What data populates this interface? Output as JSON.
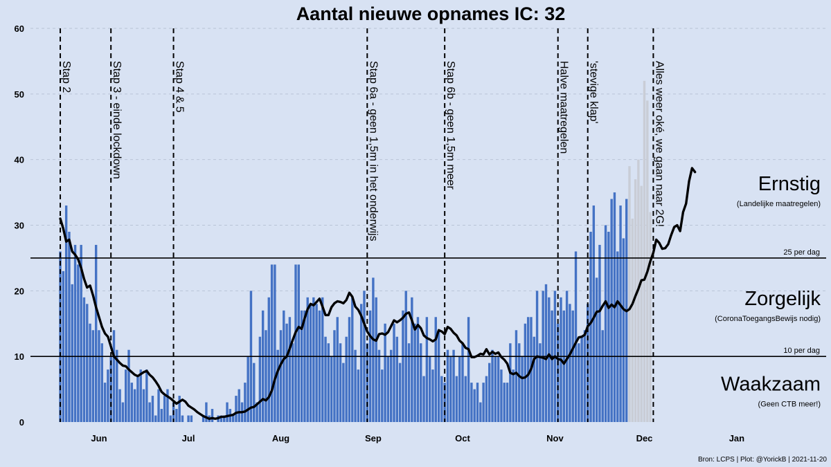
{
  "chart_data": {
    "type": "bar",
    "title": "Aantal nieuwe opnames IC:  32",
    "ylim": [
      0,
      60
    ],
    "yticks": [
      0,
      10,
      20,
      30,
      40,
      50,
      60
    ],
    "grid": true,
    "x_start_date": "2021-05-19",
    "xlim": [
      "2021-05-09",
      "2022-01-31"
    ],
    "month_ticks": [
      {
        "label": "Jun",
        "date": "2021-06-01"
      },
      {
        "label": "Jul",
        "date": "2021-07-01"
      },
      {
        "label": "Aug",
        "date": "2021-08-01"
      },
      {
        "label": "Sep",
        "date": "2021-09-01"
      },
      {
        "label": "Oct",
        "date": "2021-10-01"
      },
      {
        "label": "Nov",
        "date": "2021-11-01"
      },
      {
        "label": "Dec",
        "date": "2021-12-01"
      },
      {
        "label": "Jan",
        "date": "2022-01-01"
      }
    ],
    "series": [
      {
        "type": "bar",
        "values": [
          26,
          23,
          33,
          29,
          21,
          27,
          24,
          27,
          19,
          18,
          15,
          14,
          27,
          14,
          12,
          6,
          8,
          10,
          14,
          11,
          5,
          3,
          8,
          11,
          6,
          5,
          7,
          8,
          5,
          8,
          3,
          4,
          1,
          5,
          2,
          4,
          5,
          1,
          3,
          2,
          4,
          1,
          0,
          1,
          1,
          0,
          0,
          0,
          1,
          3,
          1,
          2,
          0,
          1,
          1,
          1,
          3,
          2,
          1,
          4,
          5,
          3,
          6,
          10,
          20,
          9,
          3,
          13,
          17,
          14,
          19,
          24,
          24,
          11,
          14,
          17,
          15,
          16,
          12,
          24,
          24,
          17,
          17,
          19,
          18,
          19,
          18,
          17,
          19,
          13,
          12,
          10,
          14,
          16,
          12,
          9,
          13,
          16,
          19,
          11,
          8,
          18,
          20,
          12,
          17,
          22,
          19,
          11,
          8,
          15,
          10,
          11,
          15,
          13,
          9,
          17,
          20,
          12,
          19,
          15,
          16,
          12,
          7,
          16,
          10,
          8,
          16,
          14,
          7,
          6,
          11,
          10,
          11,
          7,
          10,
          12,
          7,
          16,
          6,
          5,
          6,
          3,
          6,
          7,
          9,
          11,
          10,
          10,
          8,
          6,
          6,
          12,
          8,
          14,
          12,
          10,
          15,
          16,
          16,
          13,
          20,
          12,
          20,
          21,
          19,
          17,
          20,
          15,
          19,
          17,
          20,
          18,
          17,
          26,
          12,
          13,
          14,
          18,
          29,
          33,
          22,
          27,
          14,
          30,
          29,
          34,
          35,
          26,
          33,
          28,
          34,
          39,
          31,
          37,
          40,
          36,
          52,
          49,
          32
        ],
        "pending_from_index": 191
      },
      {
        "type": "line",
        "values": [
          31,
          29.5,
          27.5,
          27.8,
          26,
          25.5,
          24.8,
          23.5,
          21.8,
          20.5,
          20.8,
          19.3,
          17.5,
          16,
          14.5,
          13.5,
          13,
          11.5,
          10,
          9.5,
          9,
          8.6,
          8.5,
          8,
          7.6,
          7.2,
          7,
          7.3,
          7.6,
          7.8,
          7.2,
          6.8,
          6.2,
          5.5,
          4.6,
          4.2,
          3.9,
          3.6,
          3.2,
          2.8,
          3.1,
          3.4,
          3.1,
          2.5,
          2.2,
          1.9,
          1.5,
          1.2,
          0.9,
          0.7,
          0.5,
          0.6,
          0.5,
          0.6,
          0.8,
          0.8,
          0.9,
          1,
          1.1,
          1.4,
          1.5,
          1.5,
          1.6,
          1.9,
          2.2,
          2.3,
          2.7,
          3.1,
          3.5,
          3.3,
          3.8,
          4.8,
          6.5,
          7.8,
          8.8,
          9.6,
          10,
          11.2,
          12.5,
          13.7,
          14.5,
          14.2,
          15.8,
          17.2,
          18,
          17.8,
          18.3,
          18.8,
          17.6,
          16.3,
          16.3,
          17.5,
          18.1,
          18.4,
          18.3,
          18.1,
          18.6,
          19.7,
          19.1,
          17.6,
          17.1,
          16.2,
          15,
          13.8,
          13.1,
          12.6,
          12.4,
          13.4,
          13.5,
          13.3,
          13.7,
          14.6,
          15.5,
          15.2,
          15.5,
          15.9,
          16.5,
          16.7,
          15.5,
          14.1,
          14.8,
          14.3,
          13.2,
          12.8,
          12.6,
          12.3,
          12.6,
          14,
          13.8,
          13.4,
          14.5,
          14.2,
          13.6,
          13.2,
          12.4,
          12,
          11.3,
          11.1,
          9.9,
          9.9,
          10.1,
          10.4,
          10.3,
          11.1,
          10.3,
          10.7,
          10.4,
          10.6,
          9.9,
          9.5,
          8.9,
          7.5,
          7.3,
          7.5,
          7,
          6.7,
          6.8,
          7.2,
          8.1,
          9.6,
          10,
          9.9,
          9.8,
          9.6,
          10.3,
          9.6,
          10,
          9.6,
          9.5,
          8.9,
          9.6,
          10.3,
          11.2,
          12.1,
          12.9,
          13,
          13.3,
          14.6,
          15.1,
          15.9,
          16.8,
          16.9,
          17.7,
          18.4,
          17.4,
          17.9,
          17.5,
          18.4,
          17.8,
          17.2,
          16.9,
          17.2,
          18,
          19.2,
          20.3,
          21.6,
          21.7,
          22.9,
          24.5,
          25.8,
          27.8,
          27.3,
          26.4,
          26.5,
          27.1,
          28.5,
          29.7,
          30,
          29.1,
          32,
          33.3,
          36.7,
          38.7,
          38.1
        ]
      }
    ],
    "vertical_markers": [
      {
        "label": "Stap 2",
        "date": "2021-05-19"
      },
      {
        "label": "Stap 3 - einde lockdown",
        "date": "2021-06-05"
      },
      {
        "label": "Stap 4 & 5",
        "date": "2021-06-26"
      },
      {
        "label": "Stap 6a - geen 1,5m in het onderwijs",
        "date": "2021-08-30"
      },
      {
        "label": "Stap 6b - geen 1,5m meer",
        "date": "2021-09-25"
      },
      {
        "label": "Halve maatregelen",
        "date": "2021-11-02"
      },
      {
        "label": "'stevige klap'",
        "date": "2021-11-12"
      },
      {
        "label": "Alles weer oké, we gaan naar 2G!",
        "date": "2021-12-04"
      }
    ],
    "thresholds": [
      {
        "value": 25,
        "label": "25 per dag"
      },
      {
        "value": 10,
        "label": "10 per dag"
      }
    ],
    "zones": [
      {
        "name": "Ernstig",
        "subtitle": "(Landelijke maatregelen)",
        "center_value": 35
      },
      {
        "name": "Zorgelijk",
        "subtitle": "(CoronaToegangsBewijs nodig)",
        "center_value": 17.5
      },
      {
        "name": "Waakzaam",
        "subtitle": "(Geen CTB meer!)",
        "center_value": 4.5
      }
    ],
    "footer": "Bron: LCPS | Plot: @YorickB |  2021-11-20"
  }
}
